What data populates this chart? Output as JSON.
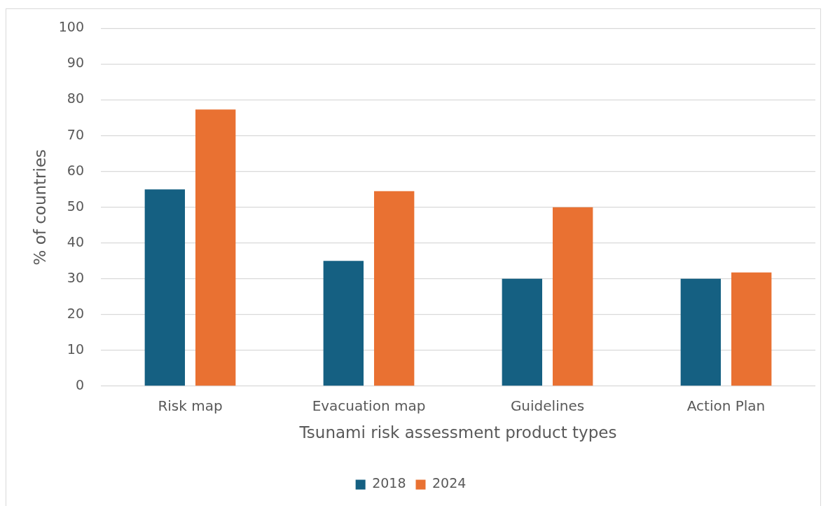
{
  "chart_data": {
    "type": "bar",
    "xlabel": "Tsunami risk assessment product types",
    "ylabel": "% of countries",
    "categories": [
      "Risk map",
      "Evacuation map",
      "Guidelines",
      "Action Plan"
    ],
    "series": [
      {
        "name": "2018",
        "color": "#156082",
        "values": [
          55,
          35,
          30,
          30
        ]
      },
      {
        "name": "2024",
        "color": "#e97132",
        "values": [
          77.3,
          54.5,
          50,
          31.8
        ]
      }
    ],
    "ylim": [
      0,
      100
    ],
    "yticks": [
      0,
      10,
      20,
      30,
      40,
      50,
      60,
      70,
      80,
      90,
      100
    ],
    "grid": "y",
    "legend": "bottom"
  }
}
